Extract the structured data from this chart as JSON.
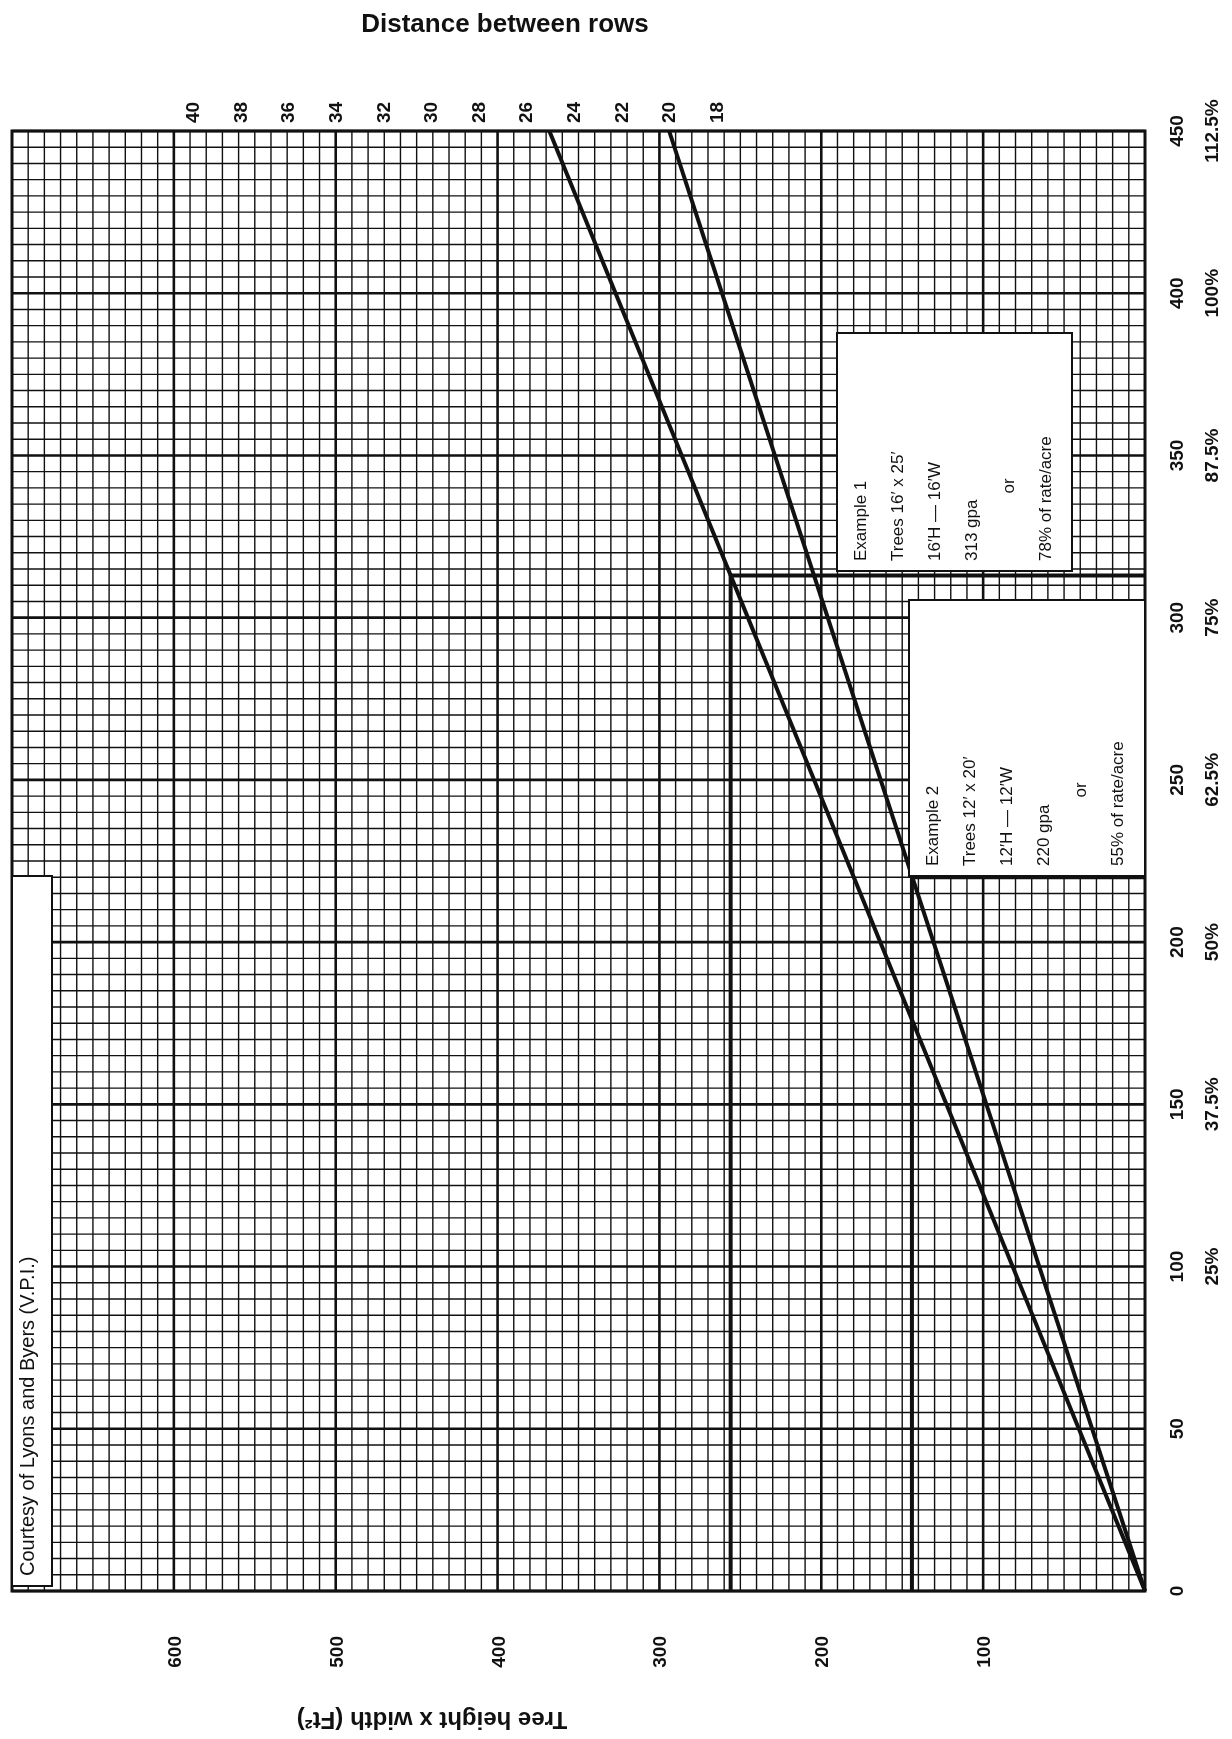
{
  "chart_data": {
    "type": "line",
    "xlabel": "Tree height x width (Ft²)",
    "x2label": "Distance between rows",
    "series": [
      {
        "color": "#111111",
        "x": [
          0,
          368
        ],
        "values": [
          0,
          450
        ]
      },
      {
        "color": "#111111",
        "x": [
          0,
          294
        ],
        "values": [
          0,
          450
        ]
      },
      {
        "color": "#111111",
        "x": [
          256,
          256,
          0
        ],
        "values": [
          0,
          313,
          313
        ]
      },
      {
        "color": "#111111",
        "x": [
          144,
          144,
          0
        ],
        "values": [
          0,
          220,
          220
        ]
      }
    ],
    "xlim": [
      700,
      0
    ],
    "xticks": [
      {
        "value": 700,
        "label": null
      },
      {
        "value": 690,
        "label": null
      },
      {
        "value": 680,
        "label": null
      },
      {
        "value": 670,
        "label": null
      },
      {
        "value": 660,
        "label": null
      },
      {
        "value": 650,
        "label": null
      },
      {
        "value": 640,
        "label": null
      },
      {
        "value": 630,
        "label": null
      },
      {
        "value": 620,
        "label": null
      },
      {
        "value": 610,
        "label": null
      },
      600,
      {
        "value": 590,
        "label": null
      },
      {
        "value": 580,
        "label": null
      },
      {
        "value": 570,
        "label": null
      },
      {
        "value": 560,
        "label": null
      },
      {
        "value": 550,
        "label": null
      },
      {
        "value": 540,
        "label": null
      },
      {
        "value": 530,
        "label": null
      },
      {
        "value": 520,
        "label": null
      },
      {
        "value": 510,
        "label": null
      },
      500,
      {
        "value": 490,
        "label": null
      },
      {
        "value": 480,
        "label": null
      },
      {
        "value": 470,
        "label": null
      },
      {
        "value": 460,
        "label": null
      },
      {
        "value": 450,
        "label": null
      },
      {
        "value": 440,
        "label": null
      },
      {
        "value": 430,
        "label": null
      },
      {
        "value": 420,
        "label": null
      },
      {
        "value": 410,
        "label": null
      },
      400,
      {
        "value": 390,
        "label": null
      },
      {
        "value": 380,
        "label": null
      },
      {
        "value": 370,
        "label": null
      },
      {
        "value": 360,
        "label": null
      },
      {
        "value": 350,
        "label": null
      },
      {
        "value": 340,
        "label": null
      },
      {
        "value": 330,
        "label": null
      },
      {
        "value": 320,
        "label": null
      },
      {
        "value": 310,
        "label": null
      },
      300,
      {
        "value": 290,
        "label": null
      },
      {
        "value": 280,
        "label": null
      },
      {
        "value": 270,
        "label": null
      },
      {
        "value": 260,
        "label": null
      },
      {
        "value": 250,
        "label": null
      },
      {
        "value": 240,
        "label": null
      },
      {
        "value": 230,
        "label": null
      },
      {
        "value": 220,
        "label": null
      },
      {
        "value": 210,
        "label": null
      },
      200,
      {
        "value": 190,
        "label": null
      },
      {
        "value": 180,
        "label": null
      },
      {
        "value": 170,
        "label": null
      },
      {
        "value": 160,
        "label": null
      },
      {
        "value": 150,
        "label": null
      },
      {
        "value": 140,
        "label": null
      },
      {
        "value": 130,
        "label": null
      },
      {
        "value": 120,
        "label": null
      },
      {
        "value": 110,
        "label": null
      },
      100,
      {
        "value": 90,
        "label": null
      },
      {
        "value": 80,
        "label": null
      },
      {
        "value": 70,
        "label": null
      },
      {
        "value": 60,
        "label": null
      },
      {
        "value": 50,
        "label": null
      },
      {
        "value": 40,
        "label": null
      },
      {
        "value": 30,
        "label": null
      },
      {
        "value": 20,
        "label": null
      },
      {
        "value": 10,
        "label": null
      },
      {
        "value": 0,
        "label": null
      }
    ],
    "x2lim": [
      47.55,
      0
    ],
    "x2ticks": [
      40,
      38,
      36,
      34,
      32,
      30,
      28,
      26,
      24,
      22,
      20,
      18
    ],
    "ylim": [
      0,
      450
    ],
    "yticks": [
      0,
      {
        "value": 5,
        "label": null
      },
      {
        "value": 10,
        "label": null
      },
      {
        "value": 15,
        "label": null
      },
      {
        "value": 20,
        "label": null
      },
      {
        "value": 25,
        "label": null
      },
      {
        "value": 30,
        "label": null
      },
      {
        "value": 35,
        "label": null
      },
      {
        "value": 40,
        "label": null
      },
      {
        "value": 45,
        "label": null
      },
      50,
      {
        "value": 55,
        "label": null
      },
      {
        "value": 60,
        "label": null
      },
      {
        "value": 65,
        "label": null
      },
      {
        "value": 70,
        "label": null
      },
      {
        "value": 75,
        "label": null
      },
      {
        "value": 80,
        "label": null
      },
      {
        "value": 85,
        "label": null
      },
      {
        "value": 90,
        "label": null
      },
      {
        "value": 95,
        "label": null
      },
      100,
      {
        "value": 105,
        "label": null
      },
      {
        "value": 110,
        "label": null
      },
      {
        "value": 115,
        "label": null
      },
      {
        "value": 120,
        "label": null
      },
      {
        "value": 125,
        "label": null
      },
      {
        "value": 130,
        "label": null
      },
      {
        "value": 135,
        "label": null
      },
      {
        "value": 140,
        "label": null
      },
      {
        "value": 145,
        "label": null
      },
      150,
      {
        "value": 155,
        "label": null
      },
      {
        "value": 160,
        "label": null
      },
      {
        "value": 165,
        "label": null
      },
      {
        "value": 170,
        "label": null
      },
      {
        "value": 175,
        "label": null
      },
      {
        "value": 180,
        "label": null
      },
      {
        "value": 185,
        "label": null
      },
      {
        "value": 190,
        "label": null
      },
      {
        "value": 195,
        "label": null
      },
      200,
      {
        "value": 205,
        "label": null
      },
      {
        "value": 210,
        "label": null
      },
      {
        "value": 215,
        "label": null
      },
      {
        "value": 220,
        "label": null
      },
      {
        "value": 225,
        "label": null
      },
      {
        "value": 230,
        "label": null
      },
      {
        "value": 235,
        "label": null
      },
      {
        "value": 240,
        "label": null
      },
      {
        "value": 245,
        "label": null
      },
      250,
      {
        "value": 255,
        "label": null
      },
      {
        "value": 260,
        "label": null
      },
      {
        "value": 265,
        "label": null
      },
      {
        "value": 270,
        "label": null
      },
      {
        "value": 275,
        "label": null
      },
      {
        "value": 280,
        "label": null
      },
      {
        "value": 285,
        "label": null
      },
      {
        "value": 290,
        "label": null
      },
      {
        "value": 295,
        "label": null
      },
      300,
      {
        "value": 305,
        "label": null
      },
      {
        "value": 310,
        "label": null
      },
      {
        "value": 315,
        "label": null
      },
      {
        "value": 320,
        "label": null
      },
      {
        "value": 325,
        "label": null
      },
      {
        "value": 330,
        "label": null
      },
      {
        "value": 335,
        "label": null
      },
      {
        "value": 340,
        "label": null
      },
      {
        "value": 345,
        "label": null
      },
      350,
      {
        "value": 355,
        "label": null
      },
      {
        "value": 360,
        "label": null
      },
      {
        "value": 365,
        "label": null
      },
      {
        "value": 370,
        "label": null
      },
      {
        "value": 375,
        "label": null
      },
      {
        "value": 380,
        "label": null
      },
      {
        "value": 385,
        "label": null
      },
      {
        "value": 390,
        "label": null
      },
      {
        "value": 395,
        "label": null
      },
      400,
      {
        "value": 405,
        "label": null
      },
      {
        "value": 410,
        "label": null
      },
      {
        "value": 415,
        "label": null
      },
      {
        "value": 420,
        "label": null
      },
      {
        "value": 425,
        "label": null
      },
      {
        "value": 430,
        "label": null
      },
      {
        "value": 435,
        "label": null
      },
      {
        "value": 440,
        "label": null
      },
      {
        "value": 445,
        "label": null
      },
      450
    ],
    "y2lim": [
      0,
      112.5
    ],
    "y2ticks": [
      {
        "value": 25,
        "label": "25%"
      },
      {
        "value": 37.5,
        "label": "37.5%"
      },
      {
        "value": 50,
        "label": "50%"
      },
      {
        "value": 62.5,
        "label": "62.5%"
      },
      {
        "value": 75,
        "label": "75%"
      },
      {
        "value": 87.5,
        "label": "87.5%"
      },
      {
        "value": 100,
        "label": "100%"
      },
      {
        "value": 112.5,
        "label": "112.5%"
      }
    ],
    "grid": true,
    "annotations": [
      "Example 1\nTrees 16′ x 25′\n16′H — 16′W\n313 gpa\nor\n78% of rate/acre",
      "Example 2\nTrees 12′ x 20′\n12′H — 12′W\n220 gpa\nor\n55% of rate/acre",
      "Courtesy of Lyons and Byers (V.P.I.)"
    ]
  }
}
